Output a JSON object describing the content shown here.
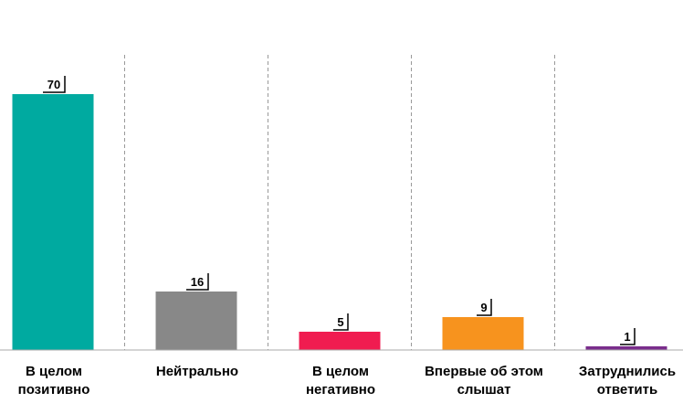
{
  "chart_data": {
    "type": "bar",
    "categories": [
      [
        "В целом",
        "позитивно"
      ],
      [
        "Нейтрально"
      ],
      [
        "В целом",
        "негативно"
      ],
      [
        "Впервые об этом",
        "слышат"
      ],
      [
        "Затруднились",
        "ответить"
      ]
    ],
    "values": [
      70,
      16,
      5,
      9,
      1
    ],
    "value_labels": [
      "70",
      "16",
      "5",
      "9",
      "1"
    ],
    "colors": [
      "#00aaa0",
      "#888888",
      "#f01c50",
      "#f7931e",
      "#7a2d8c"
    ],
    "ylim": [
      0,
      80
    ],
    "grid": "vertical dashed separators between categories",
    "legend": "none"
  }
}
